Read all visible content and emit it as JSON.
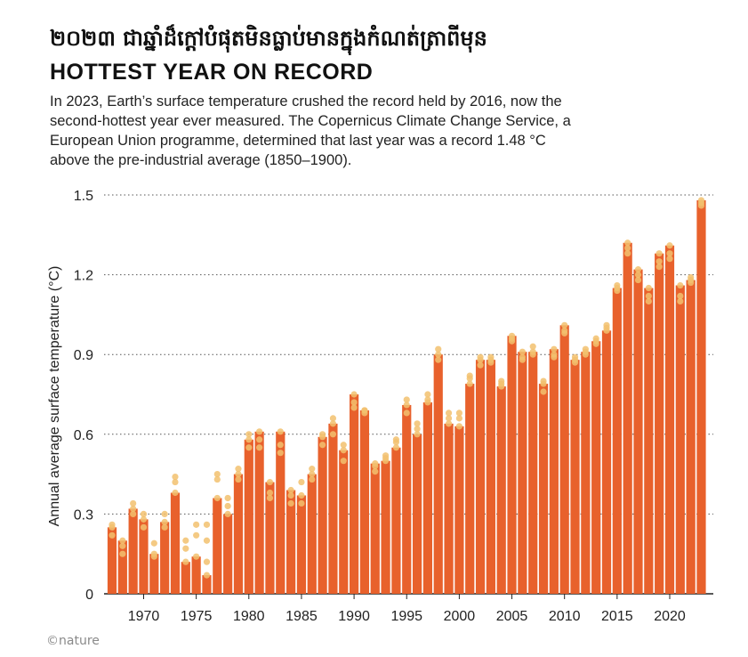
{
  "header": {
    "khmer_title": "២០២៣ ជាឆ្នាំដ៏ក្តៅបំផុតមិនធ្លាប់មានក្នុងកំណត់ត្រាពីមុន",
    "title": "HOTTEST YEAR ON RECORD",
    "subtitle": "In 2023, Earth’s surface temperature crushed the record held by 2016, now the second-hottest year ever measured. The Copernicus Climate Change Service, a European Union programme, determined that last year was a record 1.48 °C above the pre-industrial average (1850–1900)."
  },
  "credit": "©nature",
  "colors": {
    "bar": "#e8612c",
    "dot": "#f2c16f",
    "grid": "#555555"
  },
  "chart_data": {
    "type": "bar",
    "title": "HOTTEST YEAR ON RECORD",
    "xlabel": "",
    "ylabel": "Annual average surface temperature (°C)",
    "ylim": [
      0,
      1.5
    ],
    "yticks": [
      "0",
      "0.3",
      "0.6",
      "0.9",
      "1.2",
      "1.5"
    ],
    "xticks": [
      "1970",
      "1975",
      "1980",
      "1985",
      "1990",
      "1995",
      "2000",
      "2005",
      "2010",
      "2015",
      "2020"
    ],
    "grid": "horizontal dotted",
    "categories": [
      1967,
      1968,
      1969,
      1970,
      1971,
      1972,
      1973,
      1974,
      1975,
      1976,
      1977,
      1978,
      1979,
      1980,
      1981,
      1982,
      1983,
      1984,
      1985,
      1986,
      1987,
      1988,
      1989,
      1990,
      1991,
      1992,
      1993,
      1994,
      1995,
      1996,
      1997,
      1998,
      1999,
      2000,
      2001,
      2002,
      2003,
      2004,
      2005,
      2006,
      2007,
      2008,
      2009,
      2010,
      2011,
      2012,
      2013,
      2014,
      2015,
      2016,
      2017,
      2018,
      2019,
      2020,
      2021,
      2022,
      2023
    ],
    "values": [
      0.25,
      0.2,
      0.32,
      0.28,
      0.15,
      0.27,
      0.38,
      0.12,
      0.14,
      0.07,
      0.36,
      0.3,
      0.45,
      0.58,
      0.61,
      0.42,
      0.61,
      0.39,
      0.37,
      0.45,
      0.59,
      0.64,
      0.54,
      0.75,
      0.69,
      0.49,
      0.5,
      0.55,
      0.71,
      0.6,
      0.72,
      0.9,
      0.64,
      0.63,
      0.79,
      0.88,
      0.88,
      0.78,
      0.97,
      0.91,
      0.91,
      0.79,
      0.92,
      1.01,
      0.88,
      0.91,
      0.95,
      0.99,
      1.15,
      1.32,
      1.22,
      1.15,
      1.28,
      1.31,
      1.16,
      1.18,
      1.48
    ],
    "dataset_estimates": [
      [
        0.25,
        0.22,
        0.26
      ],
      [
        0.2,
        0.15,
        0.18
      ],
      [
        0.32,
        0.34,
        0.3
      ],
      [
        0.28,
        0.3,
        0.25
      ],
      [
        0.15,
        0.19,
        0.14
      ],
      [
        0.27,
        0.3,
        0.25
      ],
      [
        0.38,
        0.44,
        0.42
      ],
      [
        0.12,
        0.2,
        0.17
      ],
      [
        0.14,
        0.22,
        0.26
      ],
      [
        0.07,
        0.12,
        0.2,
        0.26
      ],
      [
        0.36,
        0.45,
        0.43
      ],
      [
        0.3,
        0.36,
        0.33
      ],
      [
        0.45,
        0.47,
        0.43
      ],
      [
        0.58,
        0.55,
        0.6
      ],
      [
        0.61,
        0.58,
        0.55
      ],
      [
        0.42,
        0.38,
        0.36
      ],
      [
        0.61,
        0.56,
        0.53
      ],
      [
        0.39,
        0.37,
        0.34
      ],
      [
        0.37,
        0.42,
        0.34
      ],
      [
        0.45,
        0.47,
        0.43
      ],
      [
        0.59,
        0.56,
        0.6
      ],
      [
        0.64,
        0.66,
        0.6
      ],
      [
        0.54,
        0.5,
        0.56
      ],
      [
        0.75,
        0.72,
        0.7
      ],
      [
        0.69,
        0.68,
        0.69
      ],
      [
        0.49,
        0.46,
        0.48
      ],
      [
        0.5,
        0.52,
        0.51
      ],
      [
        0.55,
        0.57,
        0.58
      ],
      [
        0.71,
        0.73,
        0.68
      ],
      [
        0.6,
        0.62,
        0.64
      ],
      [
        0.72,
        0.75,
        0.73
      ],
      [
        0.9,
        0.92,
        0.88
      ],
      [
        0.64,
        0.66,
        0.68
      ],
      [
        0.63,
        0.66,
        0.68
      ],
      [
        0.79,
        0.82,
        0.81
      ],
      [
        0.88,
        0.86,
        0.89
      ],
      [
        0.88,
        0.89,
        0.87
      ],
      [
        0.78,
        0.8,
        0.79
      ],
      [
        0.97,
        0.95,
        0.96
      ],
      [
        0.91,
        0.89,
        0.88
      ],
      [
        0.91,
        0.93,
        0.9
      ],
      [
        0.79,
        0.76,
        0.8
      ],
      [
        0.92,
        0.9,
        0.89
      ],
      [
        1.01,
        0.99,
        0.98
      ],
      [
        0.88,
        0.89,
        0.87
      ],
      [
        0.91,
        0.92,
        0.9
      ],
      [
        0.95,
        0.96,
        0.94
      ],
      [
        0.99,
        1.0,
        1.01
      ],
      [
        1.15,
        1.16,
        1.14
      ],
      [
        1.32,
        1.3,
        1.28
      ],
      [
        1.22,
        1.2,
        1.18
      ],
      [
        1.15,
        1.12,
        1.1
      ],
      [
        1.28,
        1.25,
        1.23
      ],
      [
        1.31,
        1.28,
        1.26
      ],
      [
        1.16,
        1.12,
        1.1
      ],
      [
        1.18,
        1.17,
        1.19
      ],
      [
        1.48,
        1.47,
        1.46
      ]
    ]
  }
}
